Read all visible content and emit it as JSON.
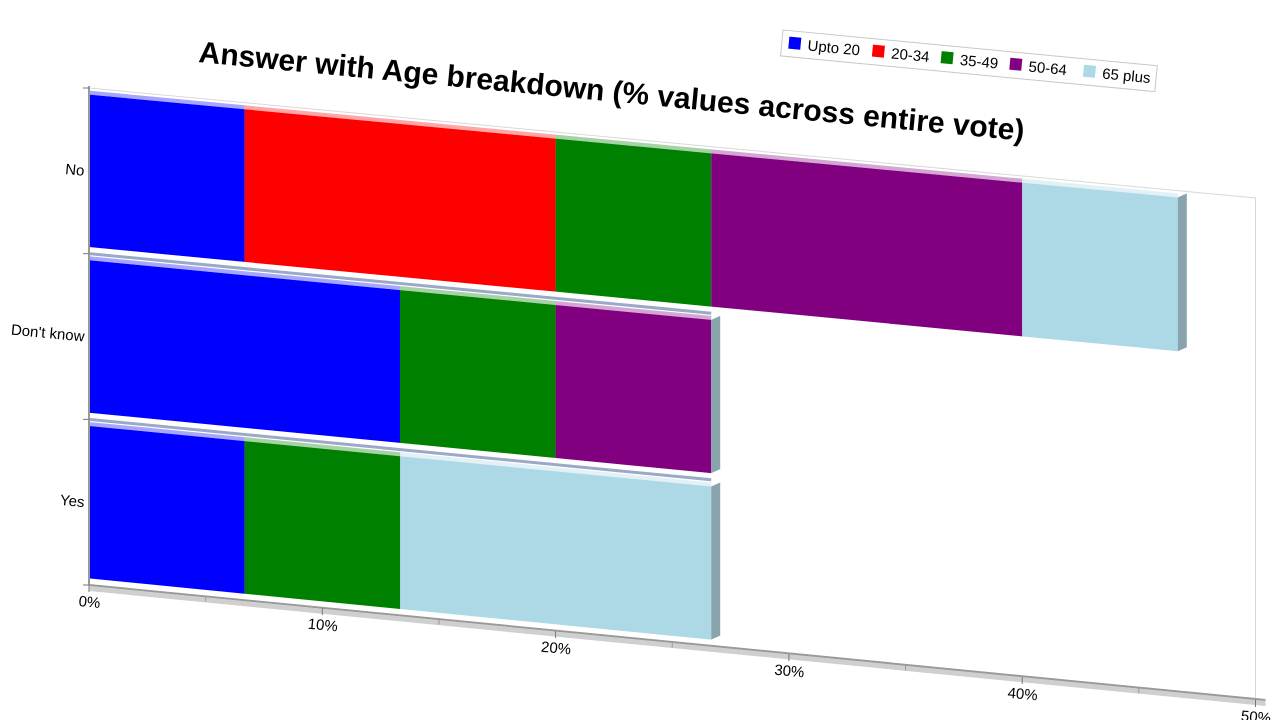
{
  "chart_data": {
    "type": "bar",
    "orientation": "horizontal",
    "stacked": true,
    "title": "Answer with Age breakdown (% values across entire vote)",
    "categories": [
      "No",
      "Don't know",
      "Yes"
    ],
    "series": [
      {
        "name": "Upto 20",
        "color": "#0000ff",
        "values": [
          6.67,
          13.33,
          6.67
        ]
      },
      {
        "name": "20-34",
        "color": "#ff0000",
        "values": [
          13.33,
          0,
          0
        ]
      },
      {
        "name": "35-49",
        "color": "#008000",
        "values": [
          6.67,
          6.67,
          6.67
        ]
      },
      {
        "name": "50-64",
        "color": "#800080",
        "values": [
          13.33,
          6.67,
          0
        ]
      },
      {
        "name": "65 plus",
        "color": "#add8e6",
        "values": [
          6.67,
          0,
          13.33
        ]
      }
    ],
    "x_ticks": [
      "0%",
      "10%",
      "20%",
      "30%",
      "40%",
      "50%"
    ],
    "xlim": [
      0,
      50
    ],
    "legend_position": "top-right",
    "grid": false
  }
}
